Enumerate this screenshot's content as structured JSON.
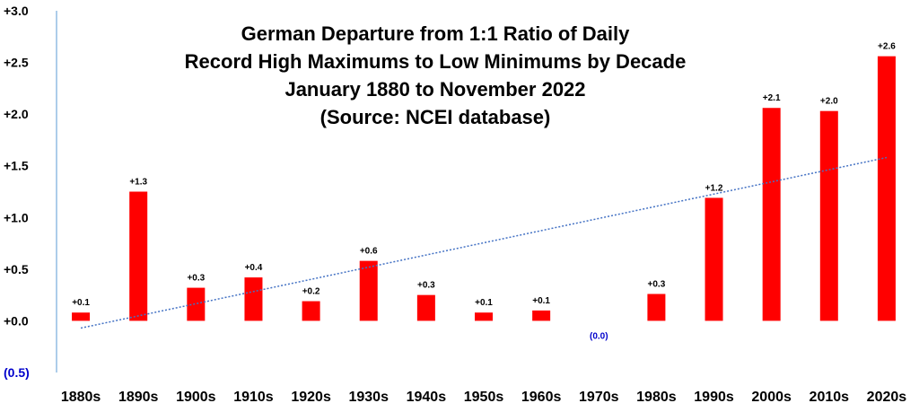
{
  "chart_data": {
    "type": "bar",
    "title_lines": [
      "German Departure from 1:1 Ratio of Daily",
      "Record High Maximums to  Low Minimums by Decade",
      "January 1880 to November 2022",
      "(Source: NCEI database)"
    ],
    "categories": [
      "1880s",
      "1890s",
      "1900s",
      "1910s",
      "1920s",
      "1930s",
      "1940s",
      "1950s",
      "1960s",
      "1970s",
      "1980s",
      "1990s",
      "2000s",
      "2010s",
      "2020s"
    ],
    "values": [
      0.08,
      1.25,
      0.32,
      0.42,
      0.19,
      0.58,
      0.25,
      0.08,
      0.1,
      0.0,
      0.26,
      1.19,
      2.06,
      2.03,
      2.56
    ],
    "data_labels": [
      "+0.1",
      "+1.3",
      "+0.3",
      "+0.4",
      "+0.2",
      "+0.6",
      "+0.3",
      "+0.1",
      "+0.1",
      "(0.0)",
      "+0.3",
      "+1.2",
      "+2.1",
      "+2.0",
      "+2.6"
    ],
    "y_ticks": [
      {
        "value": 3.0,
        "label": "+3.0"
      },
      {
        "value": 2.5,
        "label": "+2.5"
      },
      {
        "value": 2.0,
        "label": "+2.0"
      },
      {
        "value": 1.5,
        "label": "+1.5"
      },
      {
        "value": 1.0,
        "label": "+1.0"
      },
      {
        "value": 0.5,
        "label": "+0.5"
      },
      {
        "value": 0.0,
        "label": "+0.0"
      },
      {
        "value": -0.5,
        "label": "(0.5)"
      }
    ],
    "ylim": [
      -0.5,
      3.0
    ],
    "trendline": {
      "start": -0.07,
      "end": 1.58,
      "style": "dotted"
    },
    "grid": false,
    "colors": {
      "bar": "#ff0000",
      "trend": "#4472c4",
      "axis": "#5b9bd5",
      "negative_label": "#0000cc"
    }
  }
}
